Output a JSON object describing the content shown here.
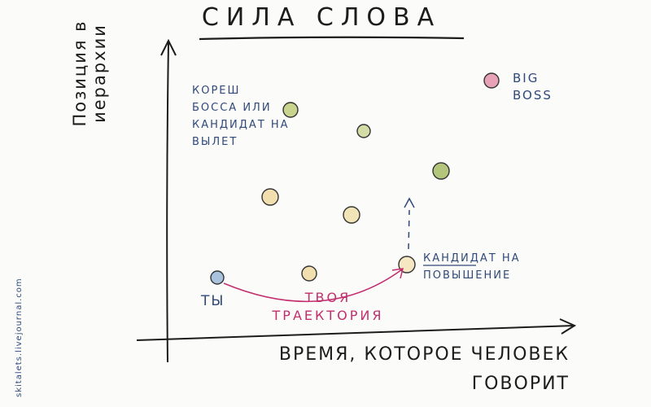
{
  "title": "СИЛА СЛОВА",
  "y_axis_label": "Позиция в иерархии",
  "x_axis_label": "ВРЕМЯ, КОТОРОЕ ЧЕЛОВЕК ГОВОРИТ",
  "labels": {
    "boss_friend": "КОРЕШ БОССА ИЛИ КАНДИДАТ НА ВЫЛЕТ",
    "big_boss": "BIG BOSS",
    "promotion_candidate": "КАНДИДАТ НА ПОВЫШЕНИЕ",
    "you": "ТЫ",
    "trajectory": "ТВОЯ ТРАЕКТОРИЯ"
  },
  "watermark": "skitalets.livejournal.com",
  "colors": {
    "pink": "#d9708f",
    "green": "#b7c77d",
    "yellow": "#f3e3b3",
    "blue": "#9fb8d6",
    "trajectory": "#c22e6e",
    "arrow": "#2f4a7a"
  }
}
